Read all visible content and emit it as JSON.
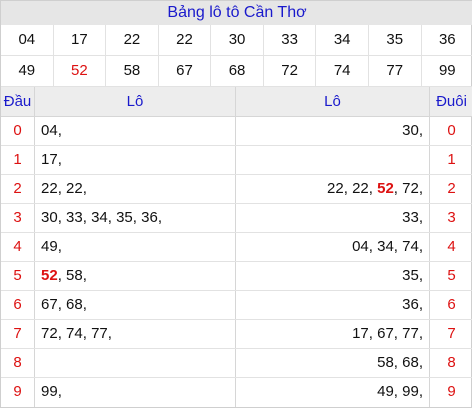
{
  "title": "Bảng lô tô Cần Thơ",
  "numbers": [
    [
      "04",
      "17",
      "22",
      "22",
      "30",
      "33",
      "34",
      "35",
      "36"
    ],
    [
      "49",
      "52",
      "58",
      "67",
      "68",
      "72",
      "74",
      "77",
      "99"
    ]
  ],
  "highlight_number": "52",
  "headers": {
    "dau": "Đầu",
    "lo_left": "Lô",
    "lo_right": "Lô",
    "duoi": "Đuôi"
  },
  "rows": [
    {
      "d": "0",
      "left": [
        "04"
      ],
      "right": [
        "30"
      ],
      "t": "0"
    },
    {
      "d": "1",
      "left": [
        "17"
      ],
      "right": [],
      "t": "1"
    },
    {
      "d": "2",
      "left": [
        "22",
        "22"
      ],
      "right": [
        "22",
        "22",
        "52",
        "72"
      ],
      "t": "2"
    },
    {
      "d": "3",
      "left": [
        "30",
        "33",
        "34",
        "35",
        "36"
      ],
      "right": [
        "33"
      ],
      "t": "3"
    },
    {
      "d": "4",
      "left": [
        "49"
      ],
      "right": [
        "04",
        "34",
        "74"
      ],
      "t": "4"
    },
    {
      "d": "5",
      "left": [
        "52",
        "58"
      ],
      "right": [
        "35"
      ],
      "t": "5"
    },
    {
      "d": "6",
      "left": [
        "67",
        "68"
      ],
      "right": [
        "36"
      ],
      "t": "6"
    },
    {
      "d": "7",
      "left": [
        "72",
        "74",
        "77"
      ],
      "right": [
        "17",
        "67",
        "77"
      ],
      "t": "7"
    },
    {
      "d": "8",
      "left": [],
      "right": [
        "58",
        "68"
      ],
      "t": "8"
    },
    {
      "d": "9",
      "left": [
        "99"
      ],
      "right": [
        "49",
        "99"
      ],
      "t": "9"
    }
  ],
  "colors": {
    "title": "#1a1acc",
    "accent_red": "#d11",
    "header_bg": "#ededed"
  }
}
